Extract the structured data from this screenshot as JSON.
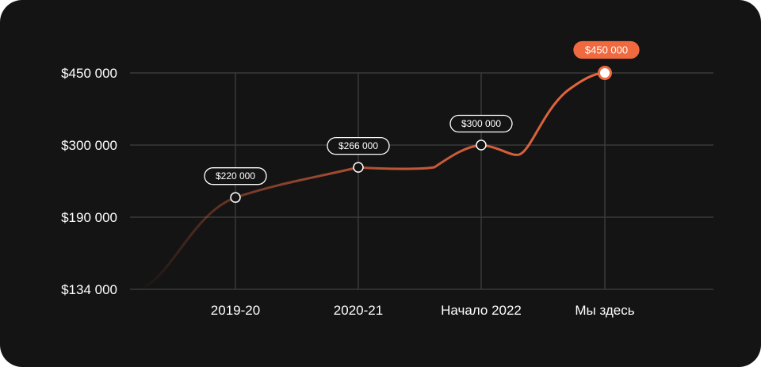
{
  "chart_data": {
    "type": "line",
    "x": [
      "2019-20",
      "2020-21",
      "Начало 2022",
      "Мы здесь"
    ],
    "xtick_labels": [
      "2019-20",
      "2020-21",
      "Начало 2022",
      "Мы здесь"
    ],
    "yticks": [
      134000,
      190000,
      300000,
      450000
    ],
    "ytick_labels": [
      "$134 000",
      "$190 000",
      "$300 000",
      "$450 000"
    ],
    "series": [
      {
        "values": [
          220000,
          266000,
          300000,
          450000
        ],
        "data_labels": [
          "$220 000",
          "$266 000",
          "$300 000",
          "$450 000"
        ]
      }
    ],
    "grid": true,
    "colors": {
      "background": "#141414",
      "grid": "#3a3a3a",
      "line": "#e8673f",
      "highlight": "#f06a3f",
      "text": "#ffffff"
    }
  }
}
